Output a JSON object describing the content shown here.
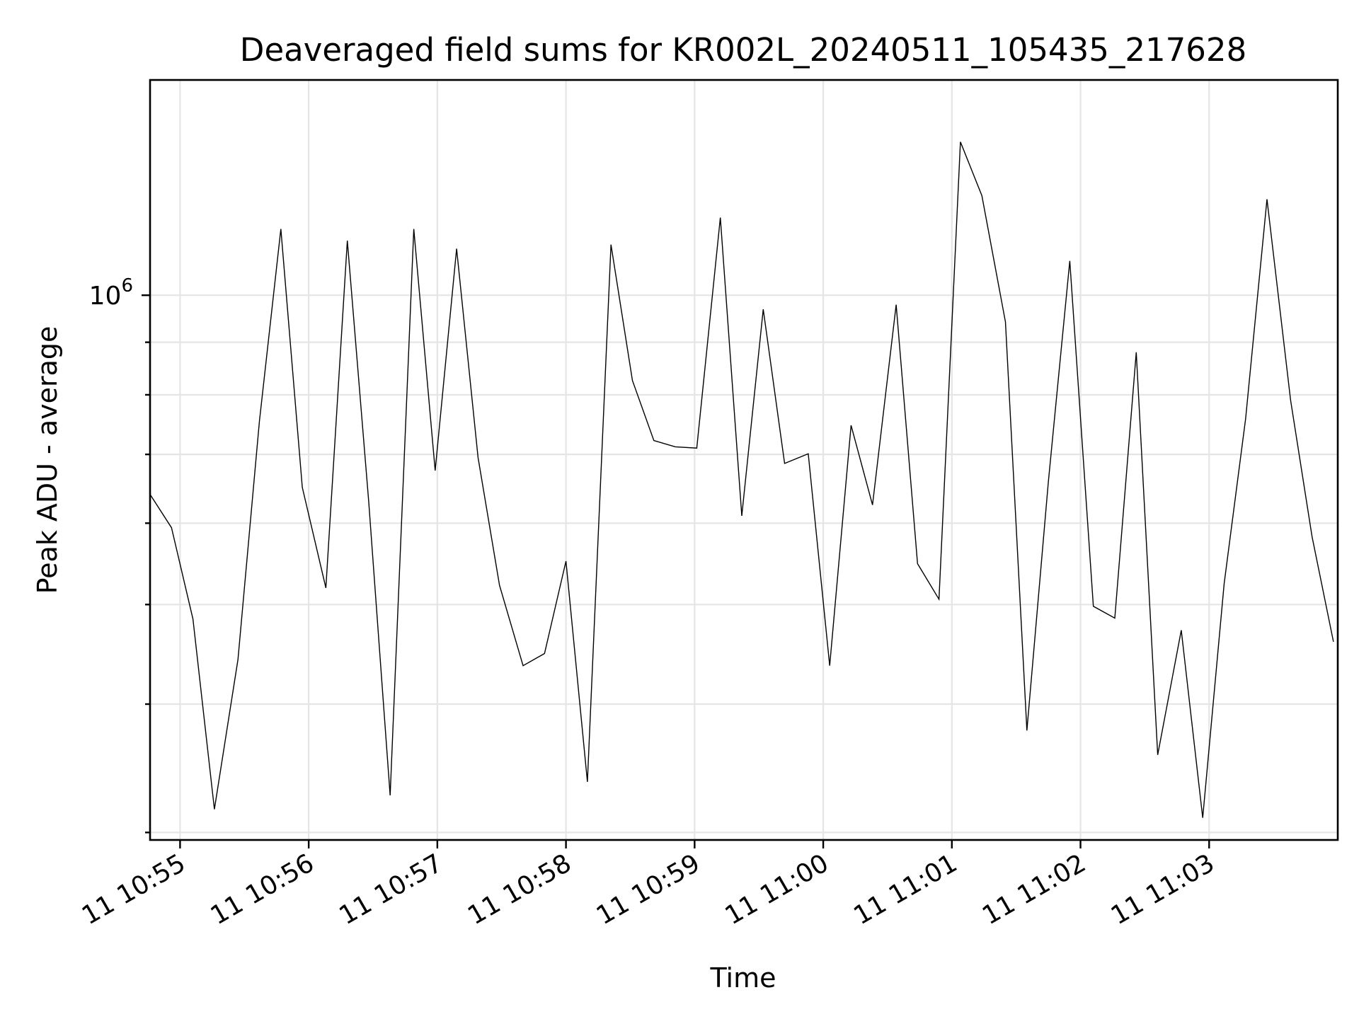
{
  "chart_data": {
    "type": "line",
    "title": "Deaveraged field sums for KR002L_20240511_105435_217628",
    "xlabel": "Time",
    "ylabel": "Peak ADU - average",
    "x_ticks": [
      "11 10:55",
      "11 10:56",
      "11 10:57",
      "11 10:58",
      "11 10:59",
      "11 11:00",
      "11 11:01",
      "11 11:02",
      "11 11:03"
    ],
    "y_major_tick": {
      "base": "10",
      "exponent": "6",
      "value": 1000000
    },
    "yscale": "log",
    "grid": true,
    "xlim": [
      "2024-05-11T10:54:46",
      "2024-05-11T11:04:00"
    ],
    "ylim": [
      295000,
      1620000
    ],
    "line_color": "#000000",
    "grid_color": "#e5e5e5",
    "series": [
      {
        "x": [
          "2024-05-11T10:54:46",
          "2024-05-11T10:54:56",
          "2024-05-11T10:55:06",
          "2024-05-11T10:55:16",
          "2024-05-11T10:55:27",
          "2024-05-11T10:55:37",
          "2024-05-11T10:55:47",
          "2024-05-11T10:55:57",
          "2024-05-11T10:56:08",
          "2024-05-11T10:56:18",
          "2024-05-11T10:56:28",
          "2024-05-11T10:56:38",
          "2024-05-11T10:56:49",
          "2024-05-11T10:56:59",
          "2024-05-11T10:57:09",
          "2024-05-11T10:57:19",
          "2024-05-11T10:57:29",
          "2024-05-11T10:57:40",
          "2024-05-11T10:57:50",
          "2024-05-11T10:58:00",
          "2024-05-11T10:58:10",
          "2024-05-11T10:58:21",
          "2024-05-11T10:58:31",
          "2024-05-11T10:58:41",
          "2024-05-11T10:58:51",
          "2024-05-11T10:59:01",
          "2024-05-11T10:59:12",
          "2024-05-11T10:59:22",
          "2024-05-11T10:59:32",
          "2024-05-11T10:59:42",
          "2024-05-11T10:59:53",
          "2024-05-11T11:00:03",
          "2024-05-11T11:00:13",
          "2024-05-11T11:00:23",
          "2024-05-11T11:00:34",
          "2024-05-11T11:00:44",
          "2024-05-11T11:00:54",
          "2024-05-11T11:01:04",
          "2024-05-11T11:01:14",
          "2024-05-11T11:01:25",
          "2024-05-11T11:01:35",
          "2024-05-11T11:01:45",
          "2024-05-11T11:01:55",
          "2024-05-11T11:02:06",
          "2024-05-11T11:02:16",
          "2024-05-11T11:02:26",
          "2024-05-11T11:02:36",
          "2024-05-11T11:02:47",
          "2024-05-11T11:02:57",
          "2024-05-11T11:03:07",
          "2024-05-11T11:03:17",
          "2024-05-11T11:03:27",
          "2024-05-11T11:03:38",
          "2024-05-11T11:03:48",
          "2024-05-11T11:03:58"
        ],
        "y": [
          640000,
          594000,
          484000,
          316000,
          442000,
          754000,
          1160000,
          650000,
          519000,
          1130000,
          630000,
          326000,
          1160000,
          675000,
          1110000,
          695000,
          522000,
          436000,
          448000,
          551000,
          336000,
          1120000,
          826000,
          722000,
          712000,
          710000,
          1190000,
          610000,
          969000,
          686000,
          701000,
          436000,
          747000,
          625000,
          979000,
          548000,
          506000,
          1410000,
          1250000,
          942000,
          377000,
          658000,
          1080000,
          498000,
          485000,
          880000,
          357000,
          472000,
          310000,
          524000,
          758000,
          1240000,
          790000,
          582000,
          460000
        ]
      }
    ]
  }
}
